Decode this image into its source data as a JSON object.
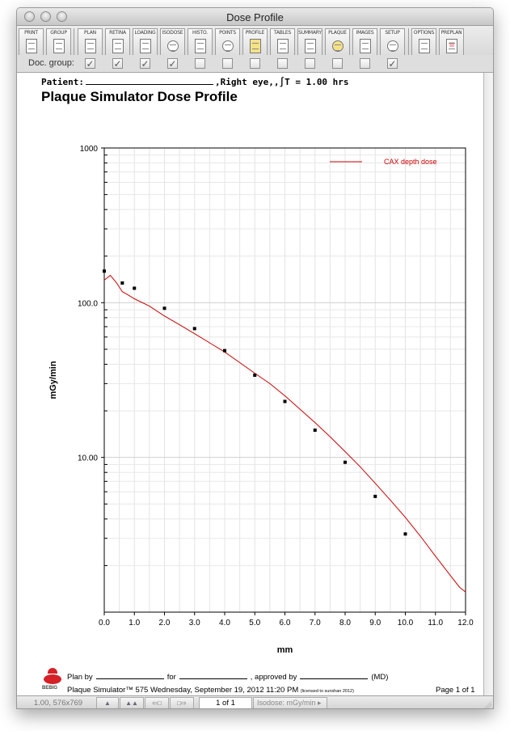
{
  "window": {
    "title": "Dose Profile"
  },
  "toolbar": {
    "buttons": [
      {
        "label": "PRINT",
        "icon": "printer-icon"
      },
      {
        "label": "GROUP",
        "icon": "group-printer-icon"
      },
      {
        "label": "PLAN",
        "icon": "plan-icon"
      },
      {
        "label": "RETINA",
        "icon": "retina-icon"
      },
      {
        "label": "LOADING",
        "icon": "loading-icon"
      },
      {
        "label": "ISODOSE",
        "icon": "isodose-icon"
      },
      {
        "label": "HISTO.",
        "icon": "histogram-icon"
      },
      {
        "label": "POINTS",
        "icon": "points-icon"
      },
      {
        "label": "PROFILE",
        "icon": "profile-icon"
      },
      {
        "label": "TABLES",
        "icon": "tables-icon"
      },
      {
        "label": "SUMMARY",
        "icon": "summary-icon"
      },
      {
        "label": "PLAQUE",
        "icon": "plaque-icon"
      },
      {
        "label": "IMAGES",
        "icon": "images-icon"
      },
      {
        "label": "SETUP",
        "icon": "setup-icon"
      },
      {
        "label": "OPTIONS",
        "icon": "options-icon"
      },
      {
        "label": "PREPLAN",
        "icon": "preplan-icon"
      }
    ]
  },
  "doc_group": {
    "label": "Doc. group:",
    "checks": [
      true,
      true,
      true,
      true,
      false,
      false,
      false,
      false,
      false,
      false,
      false,
      true
    ]
  },
  "document": {
    "patient_prefix": "Patient:",
    "patient_suffix": ",Right eye,,∫T = 1.00 hrs",
    "title": "Plaque Simulator Dose Profile"
  },
  "chart_data": {
    "type": "line",
    "xlabel": "mm",
    "ylabel": "mGy/min",
    "xlim": [
      0,
      12
    ],
    "ylim": [
      1,
      1000
    ],
    "y_scale": "log",
    "x_ticks": [
      "0.0",
      "1.0",
      "2.0",
      "3.0",
      "4.0",
      "5.0",
      "6.0",
      "7.0",
      "8.0",
      "9.0",
      "10.0",
      "11.0",
      "12.0"
    ],
    "y_ticks": [
      {
        "value": 1000,
        "label": "1000"
      },
      {
        "value": 100,
        "label": "100.0"
      },
      {
        "value": 10,
        "label": "10.00"
      }
    ],
    "grid": true,
    "legend_position": "top-right",
    "series": [
      {
        "name": "CAX depth dose",
        "kind": "line",
        "color": "#cc0000",
        "x": [
          0.0,
          0.2,
          0.4,
          0.6,
          0.8,
          1.0,
          1.5,
          2.0,
          2.5,
          3.0,
          3.5,
          4.0,
          4.5,
          5.0,
          5.5,
          6.0,
          6.5,
          7.0,
          7.5,
          8.0,
          8.5,
          9.0,
          9.5,
          10.0,
          10.5,
          11.0,
          11.5,
          11.8,
          12.0
        ],
        "y": [
          140,
          150,
          135,
          118,
          112,
          106,
          95,
          82,
          72,
          63,
          55,
          48,
          41,
          35,
          30,
          25,
          20.5,
          16.8,
          13.6,
          10.9,
          8.7,
          6.8,
          5.3,
          4.1,
          3.1,
          2.3,
          1.72,
          1.45,
          1.35
        ]
      },
      {
        "name": "",
        "kind": "scatter",
        "color": "#000000",
        "x": [
          0.0,
          0.6,
          1.0,
          2.0,
          3.0,
          4.0,
          5.0,
          6.0,
          7.0,
          8.0,
          9.0,
          10.0
        ],
        "y": [
          160,
          134,
          124,
          92,
          68,
          49,
          34,
          23,
          15,
          9.3,
          5.6,
          3.2
        ]
      }
    ]
  },
  "footer": {
    "logo_text": "BEBIG",
    "plan_by": "Plan by",
    "for": "for",
    "approved_by": ", approved by",
    "md": "(MD)",
    "product": "Plaque Simulator™ 575 Wednesday, September 19, 2012 11:20 PM",
    "license": "(licensed to sunshan 2012)",
    "page": "Page 1  of 1"
  },
  "status": {
    "coords": "1.00, 576x769",
    "page_field": "1    of  1",
    "units": "Isodose: mGy/min"
  }
}
